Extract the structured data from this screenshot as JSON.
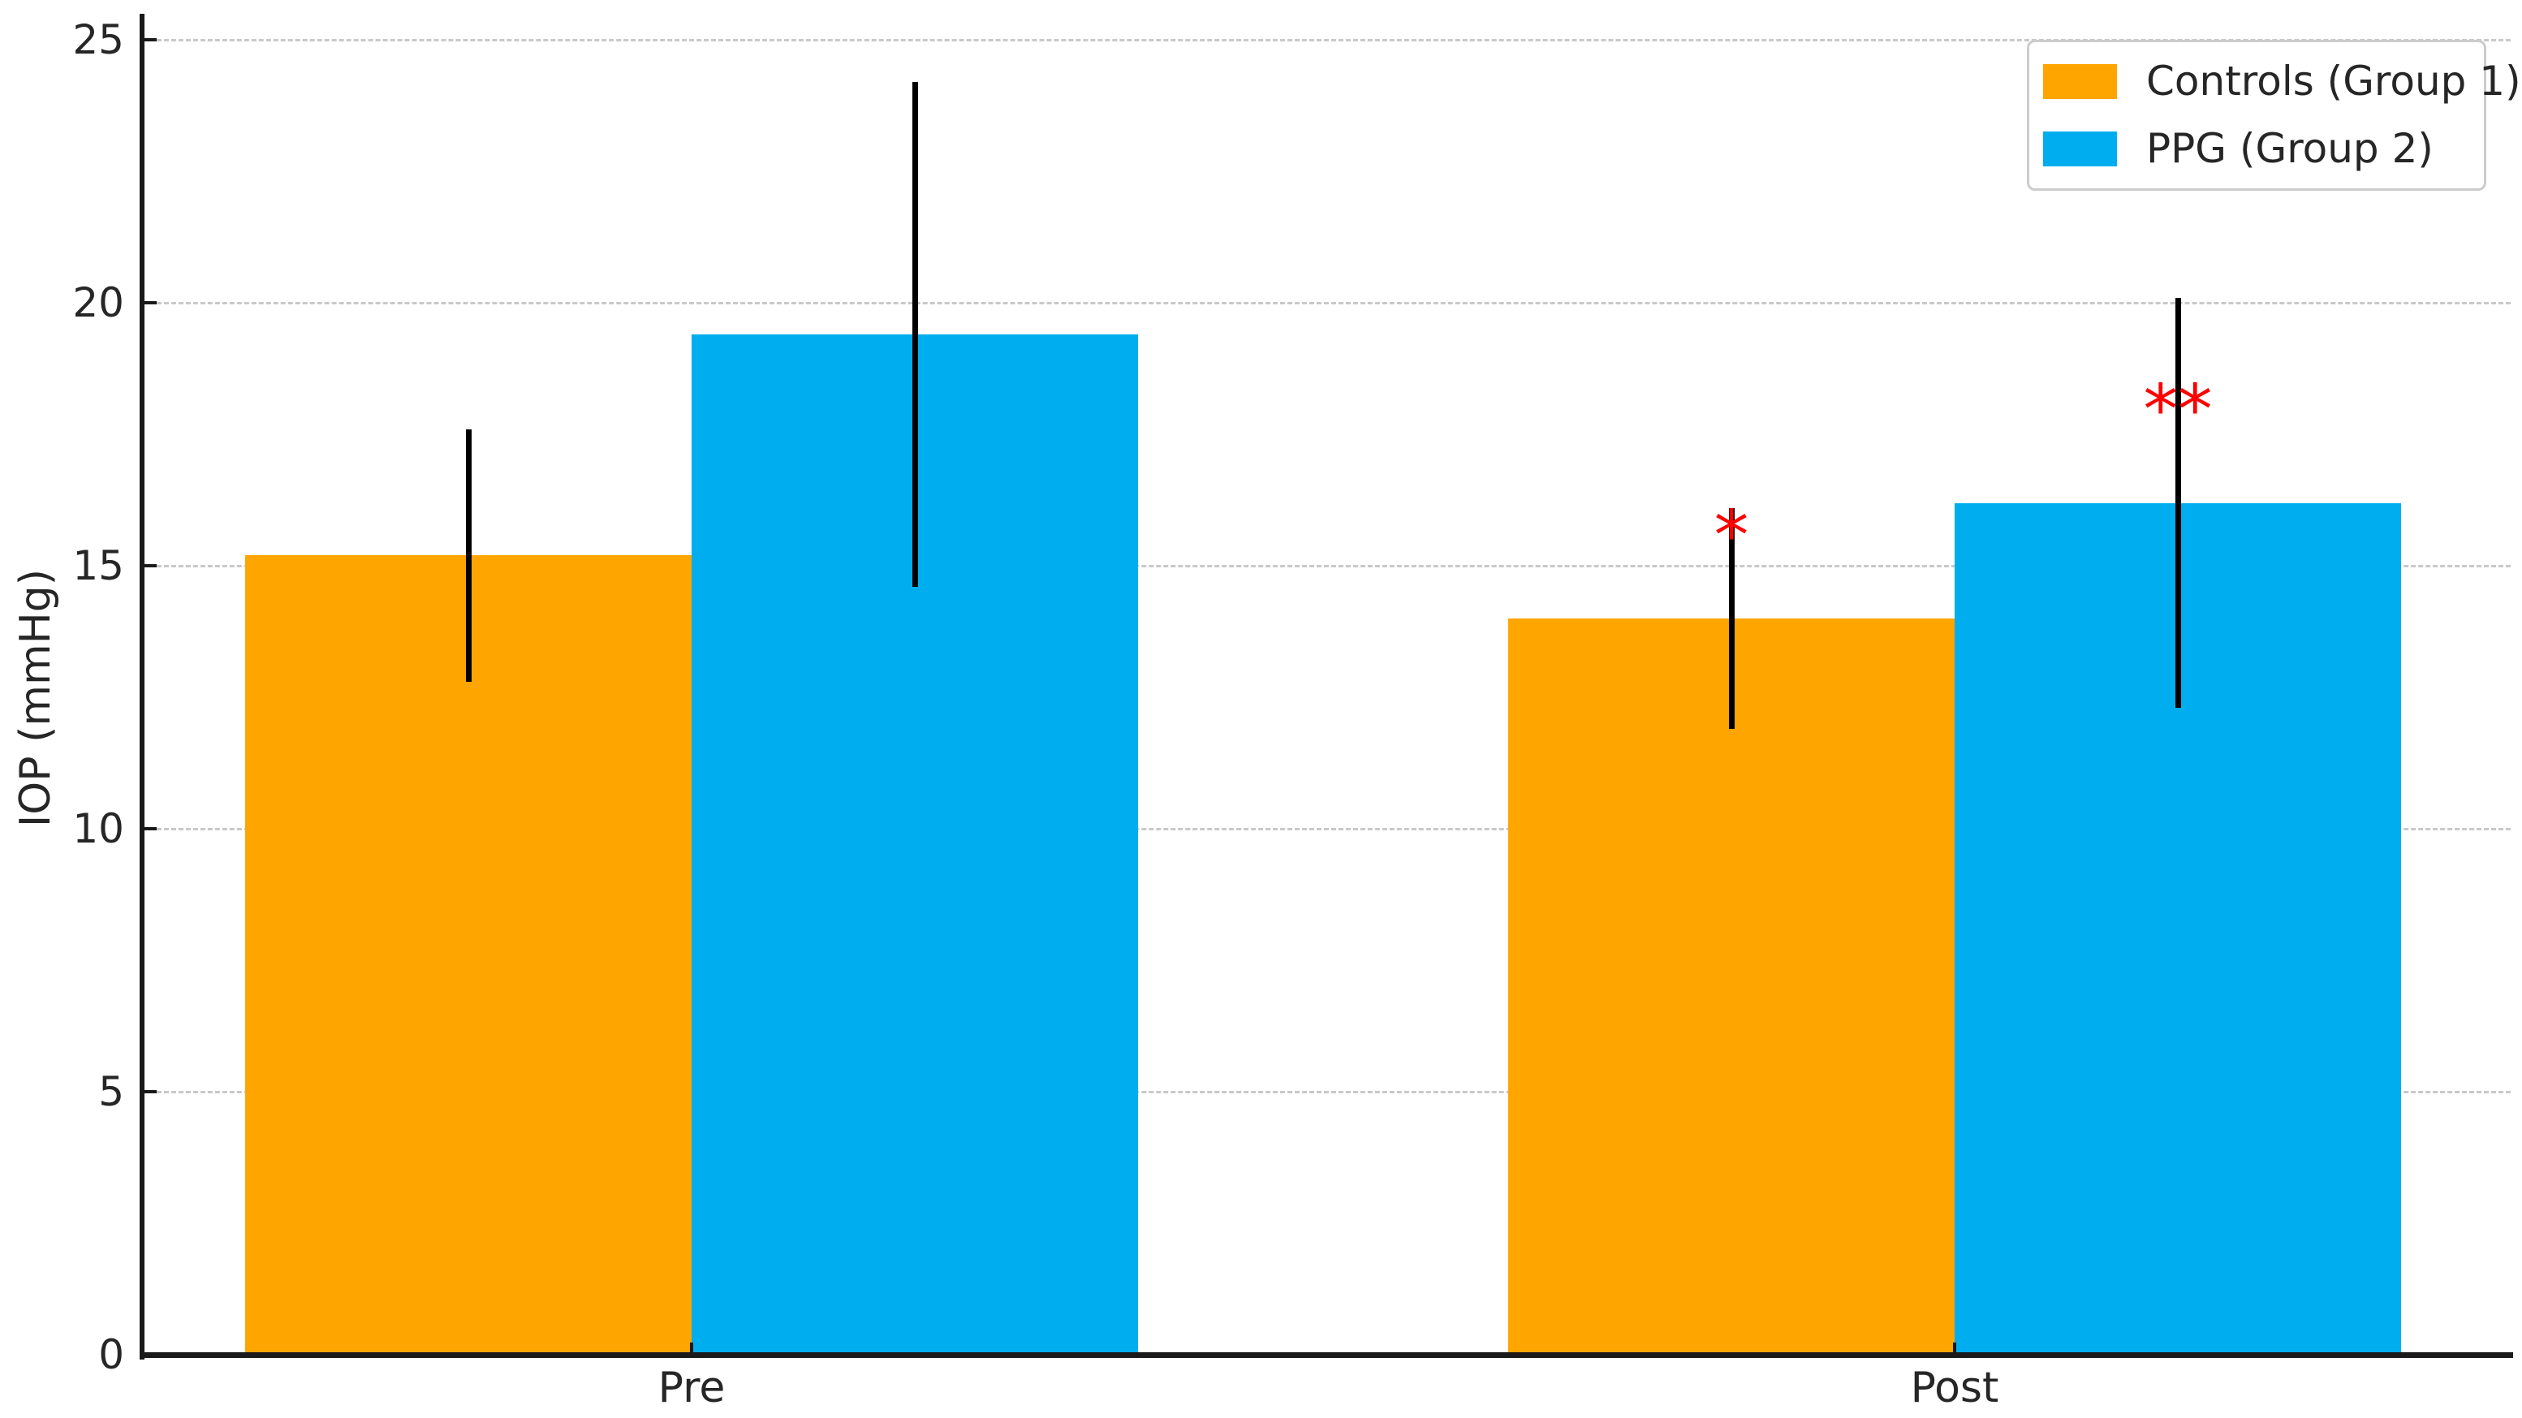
{
  "figure": {
    "background": "#ffffff",
    "text_color": "#262626",
    "spine_color": "#1a1a1a",
    "gridline_color": "#c9c9c9"
  },
  "chart_data": {
    "type": "bar",
    "title": "",
    "xlabel": "",
    "ylabel": "IOP (mmHg)",
    "categories": [
      "Pre",
      "Post"
    ],
    "series": [
      {
        "name": "Controls (Group 1)",
        "color": "#FFA500",
        "values": [
          15.2,
          14.0
        ],
        "errors": [
          2.4,
          2.1
        ]
      },
      {
        "name": "PPG (Group 2)",
        "color": "#00AEEF",
        "values": [
          19.4,
          16.2
        ],
        "errors": [
          4.8,
          3.9
        ]
      }
    ],
    "error_bar_color": "#000000",
    "annotations": [
      {
        "text": "*",
        "category_index": 1,
        "series_index": 0,
        "y_value": 15.8,
        "color": "#FF0000"
      },
      {
        "text": "**",
        "category_index": 1,
        "series_index": 1,
        "y_value": 18.2,
        "color": "#FF0000"
      }
    ],
    "yticks": [
      0,
      5,
      10,
      15,
      20,
      25
    ],
    "ylim": [
      0,
      25.5
    ],
    "grid": "horizontal-dashed",
    "tick_direction": "in",
    "legend_position": "upper right"
  },
  "legend": {
    "items": [
      {
        "label": "Controls (Group 1)",
        "color": "#FFA500"
      },
      {
        "label": "PPG (Group 2)",
        "color": "#00AEEF"
      }
    ]
  }
}
